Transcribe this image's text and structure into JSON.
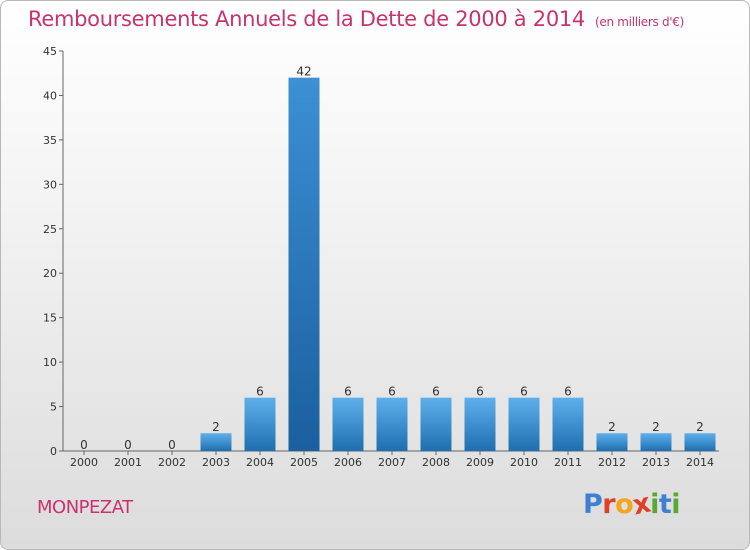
{
  "title": "Remboursements Annuels de la Dette de 2000 à 2014",
  "subtitle": "(en milliers d'€)",
  "commune": "MONPEZAT",
  "logo": {
    "text": "Proxiti",
    "colors": [
      "#3d7fd1",
      "#e0402a",
      "#f2a51d",
      "#e0402a",
      "#5aa832",
      "#3d7fd1",
      "#5aa832"
    ]
  },
  "colors": {
    "title": "#c8336f",
    "bar_light": "#5eb0ec",
    "bar_dark": "#1f6fb0"
  },
  "chart_data": {
    "type": "bar",
    "categories": [
      "2000",
      "2001",
      "2002",
      "2003",
      "2004",
      "2005",
      "2006",
      "2007",
      "2008",
      "2009",
      "2010",
      "2011",
      "2012",
      "2013",
      "2014"
    ],
    "values": [
      0,
      0,
      0,
      2,
      6,
      42,
      6,
      6,
      6,
      6,
      6,
      6,
      2,
      2,
      2
    ],
    "value_labels": [
      "0",
      "0",
      "0",
      "2",
      "6",
      "42",
      "6",
      "6",
      "6",
      "6",
      "6",
      "6",
      "2",
      "2",
      "2"
    ],
    "title": "Remboursements Annuels de la Dette de 2000 à 2014",
    "xlabel": "",
    "ylabel": "",
    "ylim": [
      0,
      45
    ],
    "yticks": [
      0,
      5,
      10,
      15,
      20,
      25,
      30,
      35,
      40,
      45
    ],
    "grid": false,
    "legend": "none"
  }
}
